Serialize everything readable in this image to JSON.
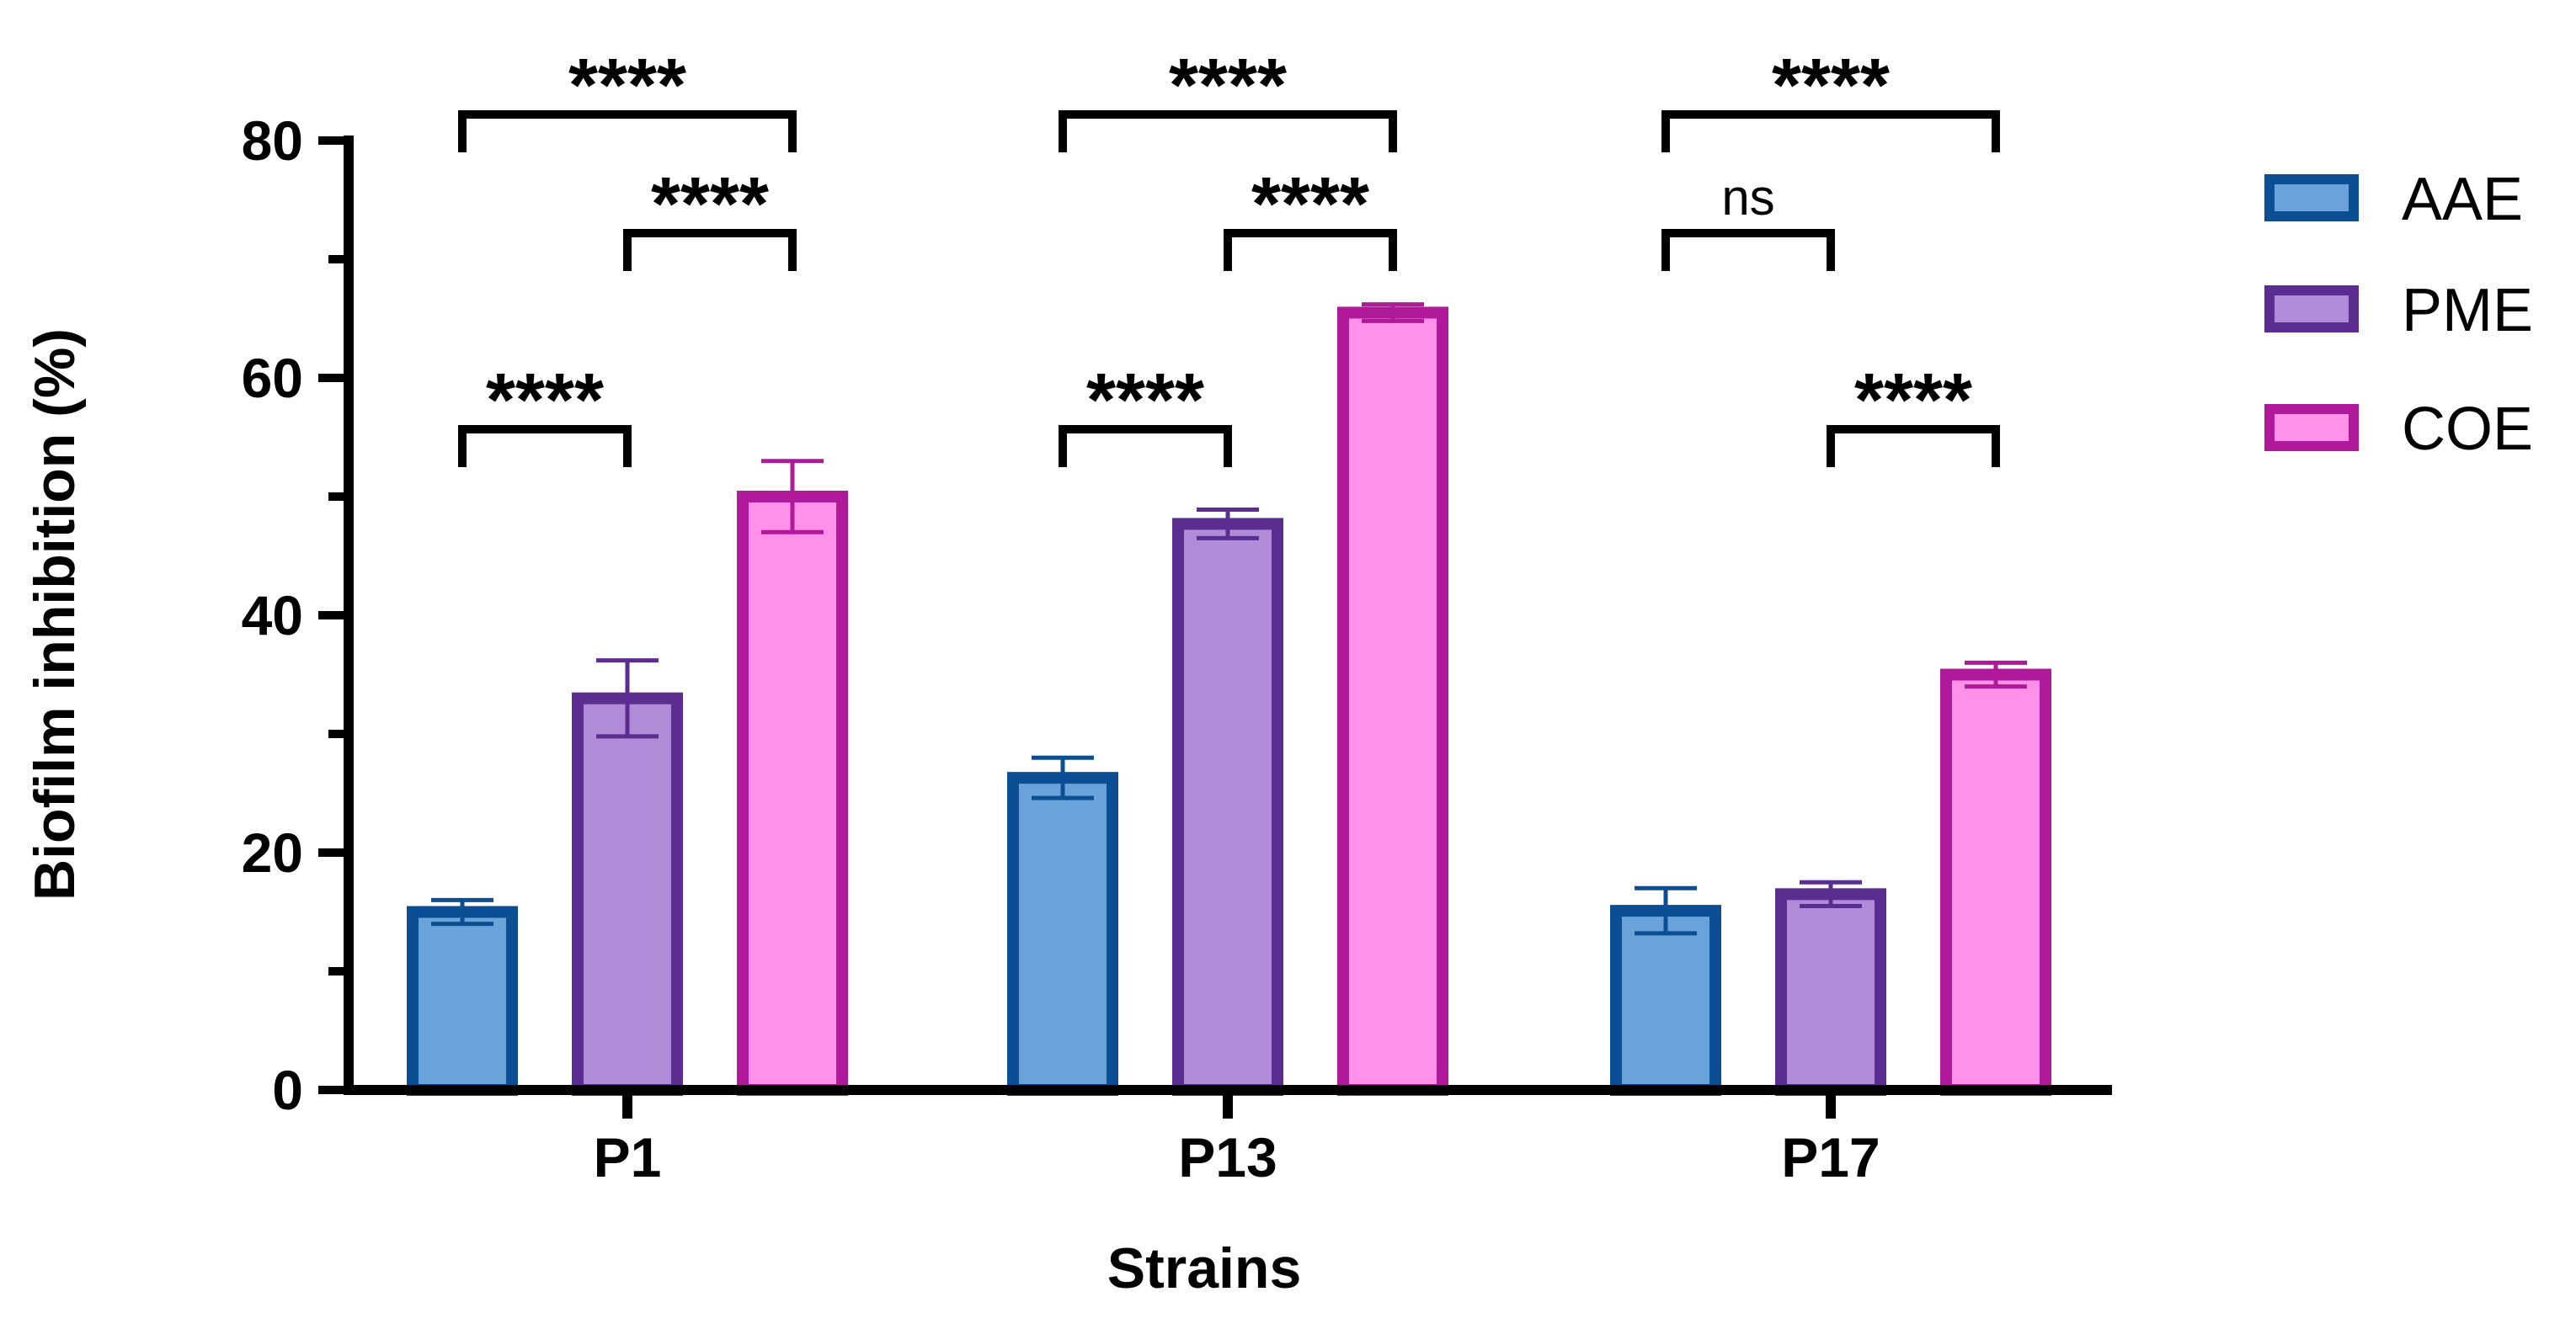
{
  "chart_data": {
    "type": "bar",
    "title": "",
    "xlabel": "Strains",
    "ylabel": "Biofilm inhibition (%)",
    "ylim": [
      0,
      80
    ],
    "yticks": [
      0,
      20,
      40,
      60,
      80
    ],
    "minor_tick_step": 10,
    "categories": [
      "P1",
      "P13",
      "P17"
    ],
    "series": [
      {
        "name": "AAE",
        "values": [
          15,
          26.3,
          15.1
        ],
        "errors": [
          1.0,
          1.7,
          1.9
        ],
        "fill": "#6aa3d9",
        "stroke": "#0c4e93"
      },
      {
        "name": "PME",
        "values": [
          33,
          47.7,
          16.5
        ],
        "errors": [
          3.2,
          1.2,
          1.0
        ],
        "fill": "#b08bd8",
        "stroke": "#5c2d91"
      },
      {
        "name": "COE",
        "values": [
          50,
          65.5,
          35
        ],
        "errors": [
          3.0,
          0.7,
          1.0
        ],
        "fill": "#ff91e8",
        "stroke": "#b0199a"
      }
    ],
    "legend": {
      "position": "right",
      "entries": [
        "AAE",
        "PME",
        "COE"
      ]
    },
    "significance": [
      {
        "category": "P1",
        "from": "AAE",
        "to": "COE",
        "label": "****",
        "level": 3
      },
      {
        "category": "P1",
        "from": "PME",
        "to": "COE",
        "label": "****",
        "level": 2
      },
      {
        "category": "P1",
        "from": "AAE",
        "to": "PME",
        "label": "****",
        "level": 1
      },
      {
        "category": "P13",
        "from": "AAE",
        "to": "COE",
        "label": "****",
        "level": 3
      },
      {
        "category": "P13",
        "from": "PME",
        "to": "COE",
        "label": "****",
        "level": 2
      },
      {
        "category": "P13",
        "from": "AAE",
        "to": "PME",
        "label": "****",
        "level": 1
      },
      {
        "category": "P17",
        "from": "AAE",
        "to": "COE",
        "label": "****",
        "level": 3
      },
      {
        "category": "P17",
        "from": "AAE",
        "to": "PME",
        "label": "ns",
        "level": 2
      },
      {
        "category": "P17",
        "from": "PME",
        "to": "COE",
        "label": "****",
        "level": 1
      }
    ]
  }
}
